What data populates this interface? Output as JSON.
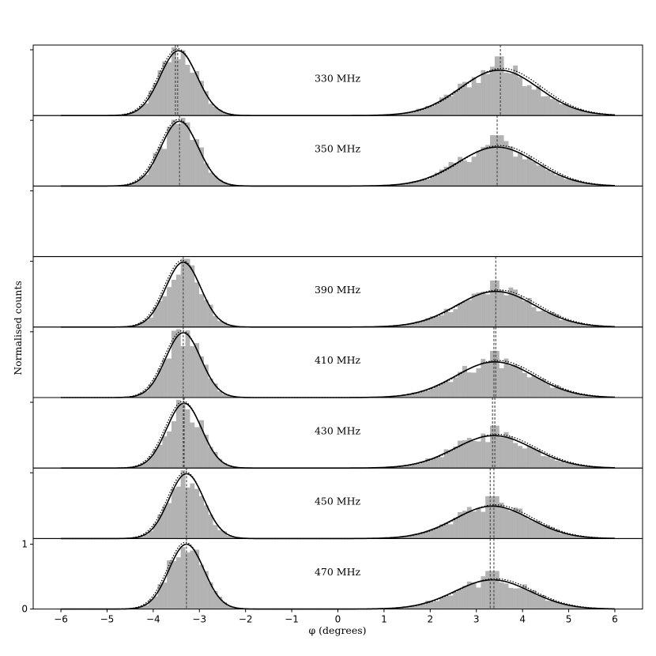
{
  "chart_data": {
    "type": "bar",
    "xlabel": "φ (degrees)",
    "ylabel": "Normalised counts",
    "xlim": [
      -6.6,
      6.6
    ],
    "xticks": [
      -6,
      -5,
      -4,
      -3,
      -2,
      -1,
      0,
      1,
      2,
      3,
      4,
      5,
      6
    ],
    "bottom_panel_yticks": [
      0,
      1
    ],
    "bin_width_deg": 0.1,
    "panels": [
      {
        "label": "330 MHz",
        "left": {
          "mu": -3.45,
          "sigma": 0.4,
          "lines": [
            -3.52,
            -3.47
          ]
        },
        "right": {
          "mu": 3.5,
          "sigma": 0.85,
          "height": 0.7,
          "lines": [
            3.52
          ]
        }
      },
      {
        "label": "350 MHz",
        "left": {
          "mu": -3.43,
          "sigma": 0.4,
          "lines": [
            -3.43
          ]
        },
        "right": {
          "mu": 3.45,
          "sigma": 0.85,
          "height": 0.6,
          "lines": [
            3.45
          ]
        }
      },
      {
        "label": "",
        "empty": true
      },
      {
        "label": "390 MHz",
        "left": {
          "mu": -3.35,
          "sigma": 0.38,
          "lines": [
            -3.35
          ]
        },
        "right": {
          "mu": 3.42,
          "sigma": 0.85,
          "height": 0.55,
          "lines": [
            3.42
          ]
        }
      },
      {
        "label": "410 MHz",
        "left": {
          "mu": -3.35,
          "sigma": 0.38,
          "lines": [
            -3.35
          ]
        },
        "right": {
          "mu": 3.4,
          "sigma": 0.85,
          "height": 0.55,
          "lines": [
            3.38,
            3.42
          ]
        }
      },
      {
        "label": "430 MHz",
        "left": {
          "mu": -3.33,
          "sigma": 0.38,
          "lines": [
            -3.35,
            -3.33
          ]
        },
        "right": {
          "mu": 3.38,
          "sigma": 0.85,
          "height": 0.5,
          "lines": [
            3.35,
            3.4
          ]
        }
      },
      {
        "label": "450 MHz",
        "left": {
          "mu": -3.28,
          "sigma": 0.38,
          "lines": [
            -3.28
          ]
        },
        "right": {
          "mu": 3.35,
          "sigma": 0.82,
          "height": 0.5,
          "lines": [
            3.3,
            3.38
          ]
        }
      },
      {
        "label": "470 MHz",
        "left": {
          "mu": -3.28,
          "sigma": 0.38,
          "lines": [
            -3.28
          ]
        },
        "right": {
          "mu": 3.35,
          "sigma": 0.82,
          "height": 0.45,
          "lines": [
            3.3,
            3.38
          ]
        }
      }
    ]
  }
}
